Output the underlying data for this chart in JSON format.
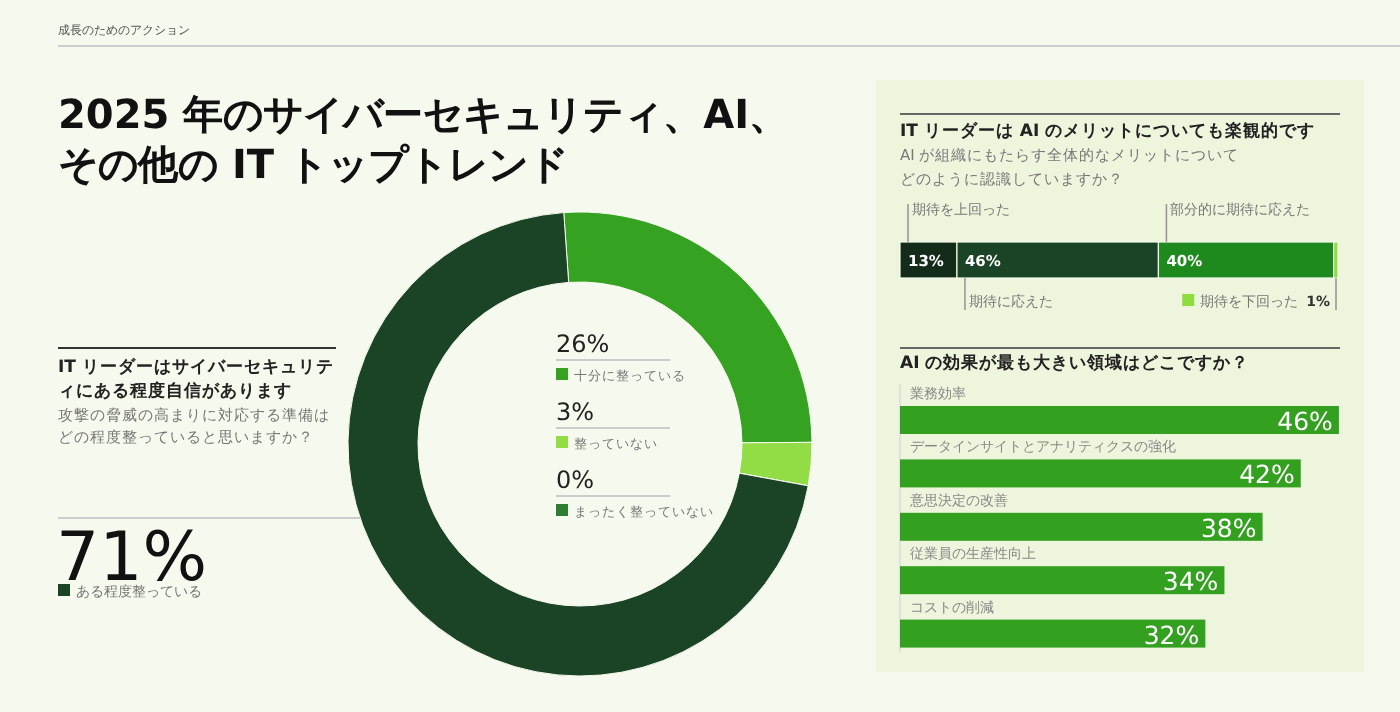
{
  "chart_data": [
    {
      "type": "other",
      "subtitle": "成長のためのアクション",
      "title": "2025 年のサイバーセキュリティ、AI、その他の IT トップトレンド"
    },
    {
      "type": "donut",
      "title": "IT リーダーはサイバーセキュリティにある程度自信があります",
      "subtitle": "攻撃の脅威の高まりに対応する準備はどの程度整っていると思いますか？",
      "categories": [
        "十分に整っている",
        "整っていない",
        "まったく整っていない",
        "ある程度整っている"
      ],
      "values": [
        26,
        3,
        0,
        71
      ],
      "colors": [
        "#35a321",
        "#92dc45",
        "#2e7d32",
        "#1b4325"
      ],
      "value_labels": [
        "26%",
        "3%",
        "0%",
        "71%"
      ],
      "legend": "center"
    },
    {
      "type": "bar",
      "orientation": "horizontal",
      "stacked": true,
      "title": "IT リーダーは AI のメリットについても楽観的です",
      "subtitle": "AI が組織にもたらす全体的なメリットについてどのように認識していますか？",
      "categories": [
        null
      ],
      "xlim": [
        0,
        100
      ],
      "tick_labels": false,
      "series": [
        {
          "name": "期待を上回った",
          "color": "#132c19",
          "values": [
            13
          ],
          "value_labels": [
            "13%"
          ]
        },
        {
          "name": "期待に応えた",
          "color": "#1b4325",
          "values": [
            46
          ],
          "value_labels": [
            "46%"
          ]
        },
        {
          "name": "部分的に期待に応えた",
          "color": "#1e8a1e",
          "values": [
            40
          ],
          "value_labels": [
            "40%"
          ]
        },
        {
          "name": "期待を下回った",
          "color": "#8fdc3e",
          "values": [
            1
          ],
          "value_labels": [
            "1%"
          ]
        }
      ]
    },
    {
      "type": "bar",
      "orientation": "horizontal",
      "title": "AI の効果が最も大きい領域はどこですか？",
      "categories": [
        "業務効率",
        "データインサイトとアナリティクスの強化",
        "意思決定の改善",
        "従業員の生産性向上",
        "コストの削減"
      ],
      "values": [
        46,
        42,
        38,
        34,
        32
      ],
      "color": "#33a020",
      "xlim": [
        0,
        48
      ],
      "tick_labels": false,
      "value_labels": [
        "46%",
        "42%",
        "38%",
        "34%",
        "32%"
      ]
    }
  ]
}
